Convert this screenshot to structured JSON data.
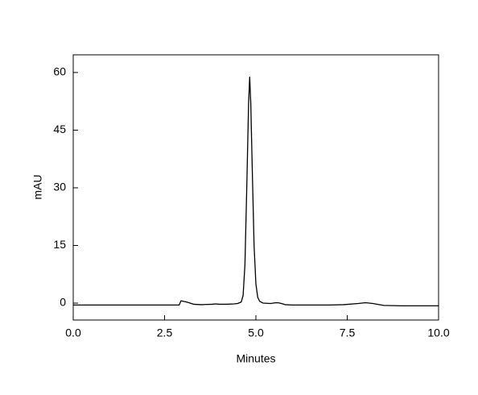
{
  "chart_data": {
    "type": "line",
    "xlabel": "Minutes",
    "ylabel": "mAU",
    "xlim": [
      0,
      10
    ],
    "ylim": [
      -4.4,
      64.6
    ],
    "xticks": [
      {
        "value": 0,
        "label": "0.0"
      },
      2.5,
      {
        "value": 5,
        "label": "5.0"
      },
      7.5,
      {
        "value": 10,
        "label": "10.0"
      }
    ],
    "yticks": [
      0,
      15,
      30,
      45,
      60
    ],
    "x": [
      0,
      1,
      2,
      2.9,
      2.95,
      3.0,
      3.1,
      3.2,
      3.3,
      3.5,
      3.8,
      3.9,
      4.0,
      4.2,
      4.4,
      4.5,
      4.6,
      4.65,
      4.7,
      4.75,
      4.8,
      4.83,
      4.86,
      4.9,
      4.95,
      5.0,
      5.05,
      5.1,
      5.2,
      5.4,
      5.55,
      5.6,
      5.7,
      5.8,
      6.0,
      7.0,
      7.4,
      7.8,
      8.0,
      8.2,
      8.5,
      9.0,
      10.0
    ],
    "series": [
      {
        "color": "#000000",
        "values": [
          -0.5,
          -0.5,
          -0.5,
          -0.5,
          0.6,
          0.5,
          0.3,
          0.0,
          -0.3,
          -0.4,
          -0.3,
          -0.2,
          -0.3,
          -0.3,
          -0.2,
          -0.1,
          0.3,
          2,
          10,
          30,
          52,
          58.8,
          52,
          35,
          15,
          5,
          1.5,
          0.5,
          0.0,
          -0.1,
          0.1,
          0.1,
          -0.1,
          -0.4,
          -0.5,
          -0.5,
          -0.4,
          -0.1,
          0.1,
          -0.1,
          -0.6,
          -0.7,
          -0.7
        ]
      }
    ]
  }
}
